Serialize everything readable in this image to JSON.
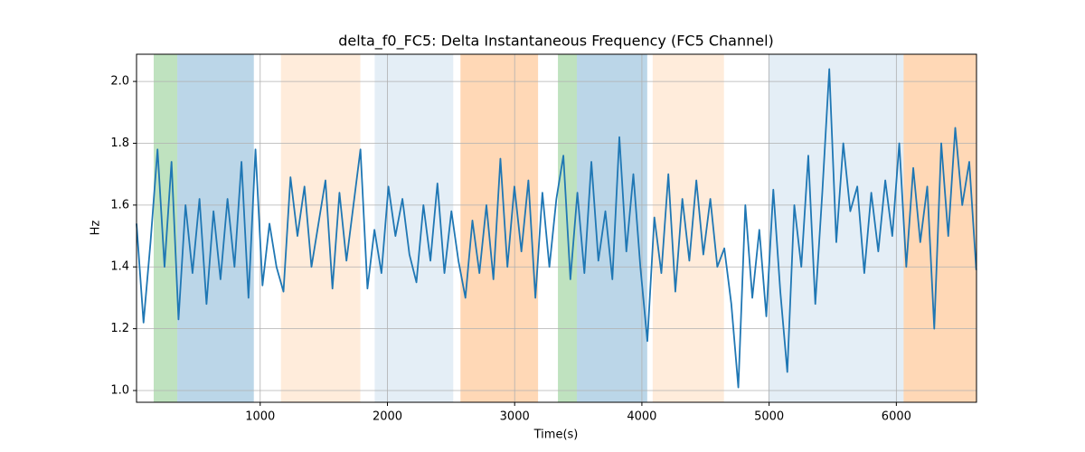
{
  "chart_data": {
    "type": "line",
    "title": "delta_f0_FC5: Delta Instantaneous Frequency (FC5 Channel)",
    "x_label": "Time(s)",
    "y_label": "Hz",
    "xlim": [
      28,
      6630
    ],
    "ylim": [
      0.962,
      2.088
    ],
    "xticks": [
      1000,
      2000,
      3000,
      4000,
      5000,
      6000
    ],
    "yticks": [
      {
        "value": 1.0,
        "label": "1.0"
      },
      1.2,
      1.4,
      1.6,
      1.8,
      {
        "value": 2.0,
        "label": "2.0"
      }
    ],
    "grid": true,
    "spans": [
      {
        "start": 163,
        "end": 348,
        "color": "#2ca02c",
        "alpha": 0.3
      },
      {
        "start": 348,
        "end": 950,
        "color": "#1f77b4",
        "alpha": 0.3
      },
      {
        "start": 1163,
        "end": 1787,
        "color": "#ff7f0e",
        "alpha": 0.15
      },
      {
        "start": 1900,
        "end": 2517,
        "color": "#1f77b4",
        "alpha": 0.12
      },
      {
        "start": 2574,
        "end": 3184,
        "color": "#ff7f0e",
        "alpha": 0.3
      },
      {
        "start": 3340,
        "end": 3489,
        "color": "#2ca02c",
        "alpha": 0.3
      },
      {
        "start": 3489,
        "end": 4042,
        "color": "#1f77b4",
        "alpha": 0.3
      },
      {
        "start": 4085,
        "end": 4645,
        "color": "#ff7f0e",
        "alpha": 0.15
      },
      {
        "start": 4993,
        "end": 6057,
        "color": "#1f77b4",
        "alpha": 0.12
      },
      {
        "start": 6057,
        "end": 6630,
        "color": "#ff7f0e",
        "alpha": 0.3
      }
    ],
    "series": [
      {
        "color": "#1f77b4",
        "x": [
          28,
          83,
          138,
          193,
          248,
          303,
          358,
          413,
          468,
          523,
          578,
          633,
          688,
          743,
          798,
          853,
          908,
          963,
          1018,
          1073,
          1128,
          1183,
          1238,
          1293,
          1348,
          1403,
          1458,
          1513,
          1568,
          1623,
          1678,
          1733,
          1788,
          1843,
          1898,
          1953,
          2008,
          2063,
          2118,
          2173,
          2228,
          2283,
          2338,
          2393,
          2448,
          2503,
          2558,
          2613,
          2668,
          2723,
          2778,
          2833,
          2888,
          2943,
          2998,
          3053,
          3108,
          3163,
          3218,
          3273,
          3328,
          3383,
          3438,
          3493,
          3548,
          3603,
          3658,
          3713,
          3768,
          3823,
          3878,
          3933,
          3988,
          4043,
          4098,
          4153,
          4208,
          4263,
          4318,
          4373,
          4428,
          4483,
          4538,
          4593,
          4648,
          4703,
          4758,
          4813,
          4868,
          4923,
          4978,
          5033,
          5088,
          5143,
          5198,
          5253,
          5308,
          5363,
          5418,
          5473,
          5528,
          5583,
          5638,
          5693,
          5748,
          5803,
          5858,
          5913,
          5968,
          6023,
          6078,
          6133,
          6188,
          6243,
          6298,
          6353,
          6408,
          6463,
          6518,
          6573,
          6628
        ],
        "values": [
          1.54,
          1.22,
          1.48,
          1.78,
          1.4,
          1.74,
          1.23,
          1.6,
          1.38,
          1.62,
          1.28,
          1.58,
          1.36,
          1.62,
          1.4,
          1.74,
          1.3,
          1.78,
          1.34,
          1.54,
          1.4,
          1.32,
          1.69,
          1.5,
          1.66,
          1.4,
          1.54,
          1.68,
          1.33,
          1.64,
          1.42,
          1.6,
          1.78,
          1.33,
          1.52,
          1.38,
          1.66,
          1.5,
          1.62,
          1.44,
          1.35,
          1.6,
          1.42,
          1.67,
          1.38,
          1.58,
          1.42,
          1.3,
          1.55,
          1.38,
          1.6,
          1.36,
          1.75,
          1.4,
          1.66,
          1.45,
          1.68,
          1.3,
          1.64,
          1.4,
          1.62,
          1.76,
          1.36,
          1.64,
          1.38,
          1.74,
          1.42,
          1.58,
          1.36,
          1.82,
          1.45,
          1.7,
          1.4,
          1.16,
          1.56,
          1.38,
          1.7,
          1.32,
          1.62,
          1.42,
          1.68,
          1.44,
          1.62,
          1.4,
          1.46,
          1.28,
          1.01,
          1.6,
          1.3,
          1.52,
          1.24,
          1.65,
          1.32,
          1.06,
          1.6,
          1.4,
          1.76,
          1.28,
          1.64,
          2.04,
          1.48,
          1.8,
          1.58,
          1.66,
          1.38,
          1.64,
          1.45,
          1.68,
          1.5,
          1.8,
          1.4,
          1.72,
          1.48,
          1.66,
          1.2,
          1.8,
          1.5,
          1.85,
          1.6,
          1.74,
          1.39
        ]
      }
    ]
  }
}
